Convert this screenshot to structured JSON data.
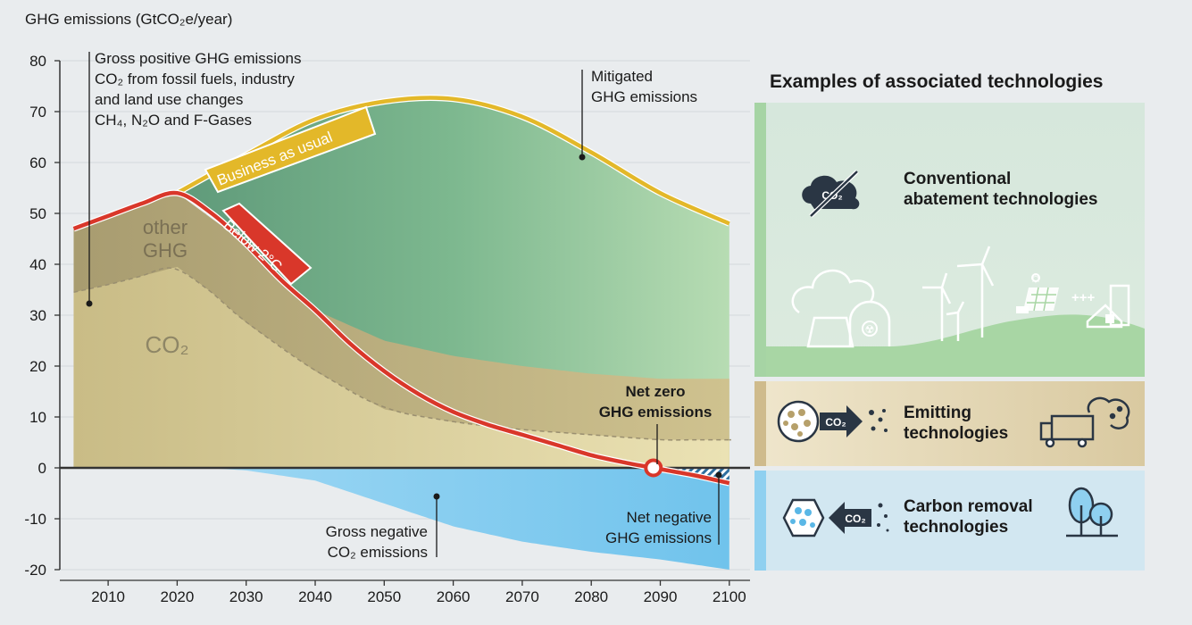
{
  "chart_data": {
    "type": "area",
    "ylabel": "GHG emissions (GtCO₂e/year)",
    "ylim": [
      -20,
      80
    ],
    "xlim": [
      2003,
      2103
    ],
    "x_ticks": [
      2010,
      2020,
      2030,
      2040,
      2050,
      2060,
      2070,
      2080,
      2090,
      2100
    ],
    "y_ticks": [
      -20,
      -10,
      0,
      10,
      20,
      30,
      40,
      50,
      60,
      70,
      80
    ],
    "series": [
      {
        "name": "Business as usual",
        "color": "#e3b829",
        "x": [
          2020,
          2030,
          2040,
          2050,
          2060,
          2070,
          2080,
          2090,
          2100
        ],
        "y": [
          54,
          61.5,
          68.5,
          72,
          72.5,
          69,
          62,
          54,
          48
        ]
      },
      {
        "name": "Below 2°C",
        "color": "#d9372a",
        "x": [
          2005,
          2010,
          2015,
          2020,
          2025,
          2030,
          2035,
          2040,
          2045,
          2050,
          2055,
          2060,
          2065,
          2070,
          2075,
          2080,
          2085,
          2089,
          2095,
          2100
        ],
        "y": [
          47,
          49.5,
          52,
          54,
          50,
          44,
          37,
          31,
          24.5,
          19,
          14.5,
          11,
          8.5,
          6.5,
          4.5,
          2.5,
          1,
          0,
          -1.5,
          -3
        ]
      },
      {
        "name": "other GHG",
        "color": "#b3a77e",
        "x": [
          2005,
          2020,
          2030,
          2040,
          2050,
          2060,
          2070,
          2080,
          2090,
          2100
        ],
        "y": [
          47,
          54,
          44,
          31,
          25,
          22,
          20,
          18.5,
          17.5,
          17.5
        ]
      },
      {
        "name": "CO₂",
        "color": "#d8cc9a",
        "x": [
          2005,
          2010,
          2020,
          2025,
          2030,
          2040,
          2050,
          2060,
          2070,
          2080,
          2090,
          2100
        ],
        "y": [
          34.5,
          36,
          39.5,
          34.5,
          28.5,
          19,
          11.5,
          9,
          7.5,
          6.5,
          5.5,
          5.5
        ]
      },
      {
        "name": "Gross negative CO₂ emissions",
        "color": "#87cdf0",
        "x": [
          2005,
          2020,
          2025,
          2030,
          2040,
          2050,
          2060,
          2070,
          2080,
          2090,
          2100
        ],
        "y": [
          0,
          0,
          -0.1,
          -0.5,
          -2.5,
          -7,
          -11.5,
          -14.5,
          -16.5,
          -18,
          -20
        ]
      }
    ],
    "net_zero_point": {
      "x": 2089,
      "y": 0
    },
    "annotations": {
      "gross_positive": [
        "Gross positive GHG emissions",
        "CO₂ from fossil fuels, industry",
        "and land use changes",
        "CH₄, N₂O and F-Gases"
      ],
      "mitigated": [
        "Mitigated",
        "GHG emissions"
      ],
      "net_zero": [
        "Net zero",
        "GHG emissions"
      ],
      "gross_negative": [
        "Gross negative",
        "CO₂ emissions"
      ],
      "net_negative": [
        "Net negative",
        "GHG emissions"
      ],
      "other_ghg": [
        "other",
        "GHG"
      ],
      "co2": "CO₂",
      "bau_label": "Business as usual",
      "below2_label": "Below 2°C"
    }
  },
  "technologies": {
    "title": "Examples of associated technologies",
    "conventional": [
      "Conventional",
      "abatement technologies"
    ],
    "emitting": [
      "Emitting",
      "technologies"
    ],
    "removal": [
      "Carbon removal",
      "technologies"
    ],
    "co2_badge": "CO₂",
    "plus_signs": "+++",
    "colors": {
      "conventional": "#a6d4a4",
      "emitting": "#cfbb8c",
      "removal": "#8fd0f0"
    }
  }
}
